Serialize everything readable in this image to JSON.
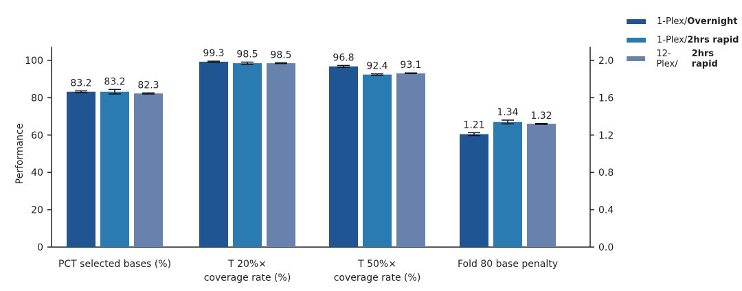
{
  "chart_data": {
    "type": "bar",
    "categories": [
      "PCT selected bases (%)",
      "T 20%× coverage rate (%)",
      "T 50%× coverage rate (%)",
      "Fold 80 base penalty"
    ],
    "category_lines": [
      [
        "PCT selected bases (%)"
      ],
      [
        "T 20%×",
        "coverage rate (%)"
      ],
      [
        "T 50%×",
        "coverage rate (%)"
      ],
      [
        "Fold 80 base penalty"
      ]
    ],
    "series": [
      {
        "name": "1-Plex/Overnight",
        "name_parts": [
          "1-Plex/",
          "Overnight"
        ],
        "color": "#1f5592",
        "values": [
          83.2,
          99.3,
          96.8,
          1.21
        ],
        "errors": [
          0.5,
          0.3,
          0.5,
          0.015
        ]
      },
      {
        "name": "1-Plex/2hrs rapid",
        "name_parts": [
          "1-Plex/",
          "2hrs rapid"
        ],
        "color": "#2a7bb1",
        "values": [
          83.2,
          98.5,
          92.4,
          1.34
        ],
        "errors": [
          1.2,
          0.6,
          0.4,
          0.02
        ]
      },
      {
        "name": "12-Plex/2hrs rapid",
        "name_parts": [
          "12-Plex/",
          "2hrs rapid"
        ],
        "color": "#6782ad",
        "values": [
          82.3,
          98.5,
          93.1,
          1.32
        ],
        "errors": [
          0.3,
          0.2,
          0.2,
          0.005
        ]
      }
    ],
    "labels": [
      [
        "83.2",
        "99.3",
        "96.8",
        "1.21"
      ],
      [
        "83.2",
        "98.5",
        "92.4",
        "1.34"
      ],
      [
        "82.3",
        "98.5",
        "93.1",
        "1.32"
      ]
    ],
    "axis_for_category": [
      "left",
      "left",
      "left",
      "right"
    ],
    "ylabel": "Performance",
    "ylim": [
      0,
      100
    ],
    "yticks": [
      "0",
      "20",
      "40",
      "60",
      "80",
      "100"
    ],
    "y2lim": [
      0,
      2.0
    ],
    "y2ticks": [
      "0.0",
      "0.4",
      "0.8",
      "1.2",
      "1.6",
      "2.0"
    ],
    "grid": false,
    "legend_position": "top-right"
  }
}
